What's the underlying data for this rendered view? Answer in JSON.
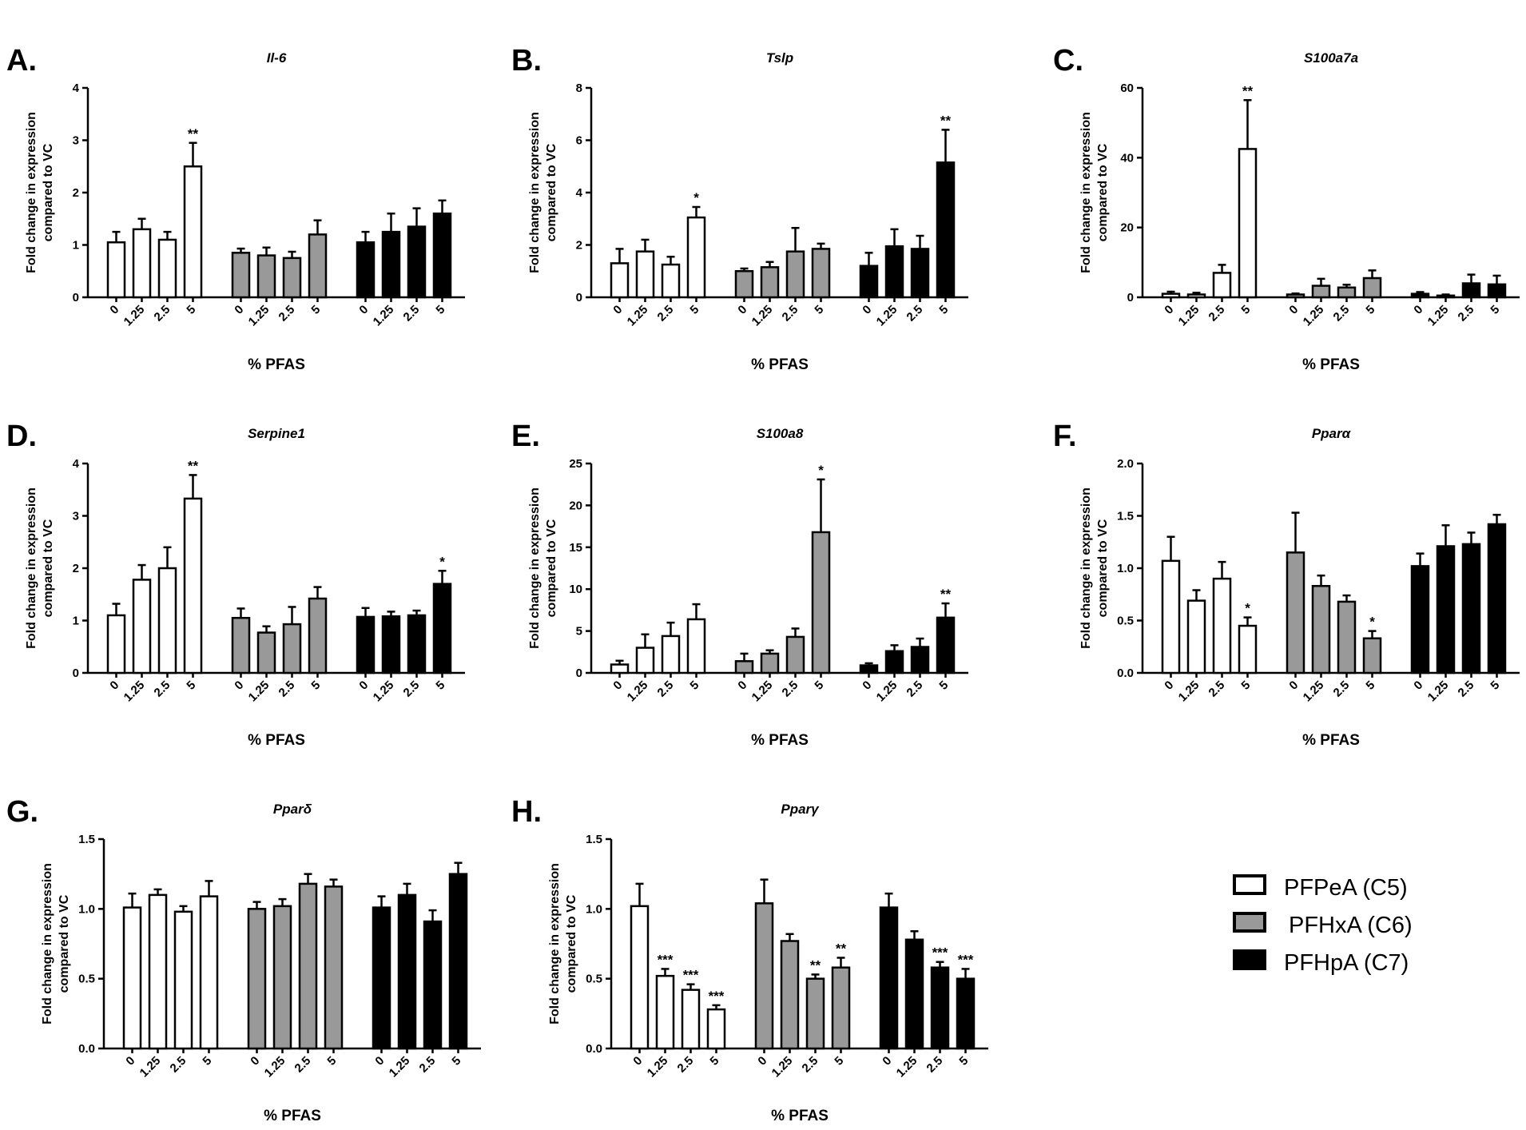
{
  "legend": [
    {
      "label": "PFPeA (C5)",
      "color": "#ffffff"
    },
    {
      "label": "PFHxA (C6)",
      "color": "#999999"
    },
    {
      "label": "PFHpA (C7)",
      "color": "#000000"
    }
  ],
  "chart_data": [
    {
      "panel": "A.",
      "type": "bar",
      "title": "Il-6",
      "ylabel": [
        "Fold change in expression",
        "compared to VC"
      ],
      "xlabel": "% PFAS",
      "categories": [
        "0",
        "1.25",
        "2.5",
        "5"
      ],
      "ylim": [
        0,
        4
      ],
      "yticks": [
        "0",
        "1",
        "2",
        "3",
        "4"
      ],
      "series": [
        {
          "name": "PFPeA (C5)",
          "color": "#ffffff",
          "values": [
            1.05,
            1.3,
            1.1,
            2.5
          ],
          "errors": [
            0.2,
            0.2,
            0.15,
            0.45
          ],
          "sig": [
            "",
            "",
            "",
            "**"
          ]
        },
        {
          "name": "PFHxA (C6)",
          "color": "#999999",
          "values": [
            0.85,
            0.8,
            0.75,
            1.2
          ],
          "errors": [
            0.08,
            0.15,
            0.12,
            0.27
          ],
          "sig": [
            "",
            "",
            "",
            ""
          ]
        },
        {
          "name": "PFHpA (C7)",
          "color": "#000000",
          "values": [
            1.05,
            1.25,
            1.35,
            1.6
          ],
          "errors": [
            0.2,
            0.35,
            0.35,
            0.25
          ],
          "sig": [
            "",
            "",
            "",
            ""
          ]
        }
      ]
    },
    {
      "panel": "B.",
      "type": "bar",
      "title": "Tslp",
      "ylabel": [
        "Fold change in expression",
        "compared to VC"
      ],
      "xlabel": "% PFAS",
      "categories": [
        "0",
        "1.25",
        "2.5",
        "5"
      ],
      "ylim": [
        0,
        8
      ],
      "yticks": [
        "0",
        "2",
        "4",
        "6",
        "8"
      ],
      "series": [
        {
          "name": "PFPeA (C5)",
          "color": "#ffffff",
          "values": [
            1.3,
            1.75,
            1.25,
            3.05
          ],
          "errors": [
            0.55,
            0.45,
            0.3,
            0.4
          ],
          "sig": [
            "",
            "",
            "",
            "*"
          ]
        },
        {
          "name": "PFHxA (C6)",
          "color": "#999999",
          "values": [
            1.0,
            1.15,
            1.75,
            1.85
          ],
          "errors": [
            0.1,
            0.2,
            0.9,
            0.2
          ],
          "sig": [
            "",
            "",
            "",
            ""
          ]
        },
        {
          "name": "PFHpA (C7)",
          "color": "#000000",
          "values": [
            1.2,
            1.95,
            1.85,
            5.15
          ],
          "errors": [
            0.5,
            0.65,
            0.5,
            1.25
          ],
          "sig": [
            "",
            "",
            "",
            "**"
          ]
        }
      ]
    },
    {
      "panel": "C.",
      "type": "bar",
      "title": "S100a7a",
      "ylabel": [
        "Fold change in expression",
        "compared to VC"
      ],
      "xlabel": "% PFAS",
      "categories": [
        "0",
        "1.25",
        "2.5",
        "5"
      ],
      "ylim": [
        0,
        60
      ],
      "yticks": [
        "0",
        "20",
        "40",
        "60"
      ],
      "series": [
        {
          "name": "PFPeA (C5)",
          "color": "#ffffff",
          "values": [
            1.0,
            0.8,
            7.0,
            42.5
          ],
          "errors": [
            0.6,
            0.5,
            2.3,
            14.0
          ],
          "sig": [
            "",
            "",
            "",
            "**"
          ]
        },
        {
          "name": "PFHxA (C6)",
          "color": "#999999",
          "values": [
            0.8,
            3.3,
            2.8,
            5.5
          ],
          "errors": [
            0.3,
            2.0,
            0.8,
            2.2
          ],
          "sig": [
            "",
            "",
            "",
            ""
          ]
        },
        {
          "name": "PFHpA (C7)",
          "color": "#000000",
          "values": [
            1.0,
            0.5,
            4.0,
            3.7
          ],
          "errors": [
            0.5,
            0.3,
            2.5,
            2.5
          ],
          "sig": [
            "",
            "",
            "",
            ""
          ]
        }
      ]
    },
    {
      "panel": "D.",
      "type": "bar",
      "title": "Serpine1",
      "ylabel": [
        "Fold change in expression",
        "compared to VC"
      ],
      "xlabel": "% PFAS",
      "categories": [
        "0",
        "1.25",
        "2.5",
        "5"
      ],
      "ylim": [
        0,
        4
      ],
      "yticks": [
        "0",
        "1",
        "2",
        "3",
        "4"
      ],
      "series": [
        {
          "name": "PFPeA (C5)",
          "color": "#ffffff",
          "values": [
            1.1,
            1.78,
            2.0,
            3.33
          ],
          "errors": [
            0.22,
            0.28,
            0.4,
            0.45
          ],
          "sig": [
            "",
            "",
            "",
            "**"
          ]
        },
        {
          "name": "PFHxA (C6)",
          "color": "#999999",
          "values": [
            1.05,
            0.77,
            0.93,
            1.42
          ],
          "errors": [
            0.18,
            0.12,
            0.33,
            0.22
          ],
          "sig": [
            "",
            "",
            "",
            ""
          ]
        },
        {
          "name": "PFHpA (C7)",
          "color": "#000000",
          "values": [
            1.07,
            1.08,
            1.1,
            1.7
          ],
          "errors": [
            0.17,
            0.09,
            0.09,
            0.25
          ],
          "sig": [
            "",
            "",
            "",
            "*"
          ]
        }
      ]
    },
    {
      "panel": "E.",
      "type": "bar",
      "title": "S100a8",
      "ylabel": [
        "Fold change in expression",
        "compared to VC"
      ],
      "xlabel": "% PFAS",
      "categories": [
        "0",
        "1.25",
        "2.5",
        "5"
      ],
      "ylim": [
        0,
        25
      ],
      "yticks": [
        "0",
        "5",
        "10",
        "15",
        "20",
        "25"
      ],
      "series": [
        {
          "name": "PFPeA (C5)",
          "color": "#ffffff",
          "values": [
            1.0,
            3.0,
            4.4,
            6.4
          ],
          "errors": [
            0.45,
            1.6,
            1.6,
            1.8
          ],
          "sig": [
            "",
            "",
            "",
            ""
          ]
        },
        {
          "name": "PFHxA (C6)",
          "color": "#999999",
          "values": [
            1.4,
            2.3,
            4.3,
            16.8
          ],
          "errors": [
            0.9,
            0.4,
            1.0,
            6.3
          ],
          "sig": [
            "",
            "",
            "",
            "*"
          ]
        },
        {
          "name": "PFHpA (C7)",
          "color": "#000000",
          "values": [
            0.9,
            2.6,
            3.1,
            6.6
          ],
          "errors": [
            0.25,
            0.7,
            1.0,
            1.7
          ],
          "sig": [
            "",
            "",
            "",
            "**"
          ]
        }
      ]
    },
    {
      "panel": "F.",
      "type": "bar",
      "title": "Pparα",
      "ylabel": [
        "Fold change in expression",
        "compared to VC"
      ],
      "xlabel": "% PFAS",
      "categories": [
        "0",
        "1.25",
        "2.5",
        "5"
      ],
      "ylim": [
        0,
        2.0
      ],
      "yticks": [
        "0.0",
        "0.5",
        "1.0",
        "1.5",
        "2.0"
      ],
      "series": [
        {
          "name": "PFPeA (C5)",
          "color": "#ffffff",
          "values": [
            1.07,
            0.69,
            0.9,
            0.45
          ],
          "errors": [
            0.23,
            0.1,
            0.16,
            0.08
          ],
          "sig": [
            "",
            "",
            "",
            "*"
          ]
        },
        {
          "name": "PFHxA (C6)",
          "color": "#999999",
          "values": [
            1.15,
            0.83,
            0.68,
            0.33
          ],
          "errors": [
            0.38,
            0.1,
            0.06,
            0.07
          ],
          "sig": [
            "",
            "",
            "",
            "*"
          ]
        },
        {
          "name": "PFHpA (C7)",
          "color": "#000000",
          "values": [
            1.02,
            1.21,
            1.23,
            1.42
          ],
          "errors": [
            0.12,
            0.2,
            0.11,
            0.09
          ],
          "sig": [
            "",
            "",
            "",
            ""
          ]
        }
      ]
    },
    {
      "panel": "G.",
      "type": "bar",
      "title": "Pparδ",
      "ylabel": [
        "Fold change in expression",
        "compared to VC"
      ],
      "xlabel": "% PFAS",
      "categories": [
        "0",
        "1.25",
        "2.5",
        "5"
      ],
      "ylim": [
        0,
        1.5
      ],
      "yticks": [
        "0.0",
        "0.5",
        "1.0",
        "1.5"
      ],
      "series": [
        {
          "name": "PFPeA (C5)",
          "color": "#ffffff",
          "values": [
            1.01,
            1.1,
            0.98,
            1.09
          ],
          "errors": [
            0.1,
            0.04,
            0.04,
            0.11
          ],
          "sig": [
            "",
            "",
            "",
            ""
          ]
        },
        {
          "name": "PFHxA (C6)",
          "color": "#999999",
          "values": [
            1.0,
            1.02,
            1.18,
            1.16
          ],
          "errors": [
            0.05,
            0.05,
            0.07,
            0.05
          ],
          "sig": [
            "",
            "",
            "",
            ""
          ]
        },
        {
          "name": "PFHpA (C7)",
          "color": "#000000",
          "values": [
            1.01,
            1.1,
            0.91,
            1.25
          ],
          "errors": [
            0.08,
            0.08,
            0.08,
            0.08
          ],
          "sig": [
            "",
            "",
            "",
            ""
          ]
        }
      ]
    },
    {
      "panel": "H.",
      "type": "bar",
      "title": "Pparγ",
      "ylabel": [
        "Fold change in expression",
        "compared to VC"
      ],
      "xlabel": "% PFAS",
      "categories": [
        "0",
        "1.25",
        "2.5",
        "5"
      ],
      "ylim": [
        0,
        1.5
      ],
      "yticks": [
        "0.0",
        "0.5",
        "1.0",
        "1.5"
      ],
      "series": [
        {
          "name": "PFPeA (C5)",
          "color": "#ffffff",
          "values": [
            1.02,
            0.52,
            0.42,
            0.28
          ],
          "errors": [
            0.16,
            0.05,
            0.04,
            0.03
          ],
          "sig": [
            "",
            "***",
            "***",
            "***"
          ]
        },
        {
          "name": "PFHxA (C6)",
          "color": "#999999",
          "values": [
            1.04,
            0.77,
            0.5,
            0.58
          ],
          "errors": [
            0.17,
            0.05,
            0.03,
            0.07
          ],
          "sig": [
            "",
            "",
            "**",
            "**"
          ]
        },
        {
          "name": "PFHpA (C7)",
          "color": "#000000",
          "values": [
            1.01,
            0.78,
            0.58,
            0.5
          ],
          "errors": [
            0.1,
            0.06,
            0.04,
            0.07
          ],
          "sig": [
            "",
            "",
            "***",
            "***"
          ]
        }
      ]
    }
  ]
}
